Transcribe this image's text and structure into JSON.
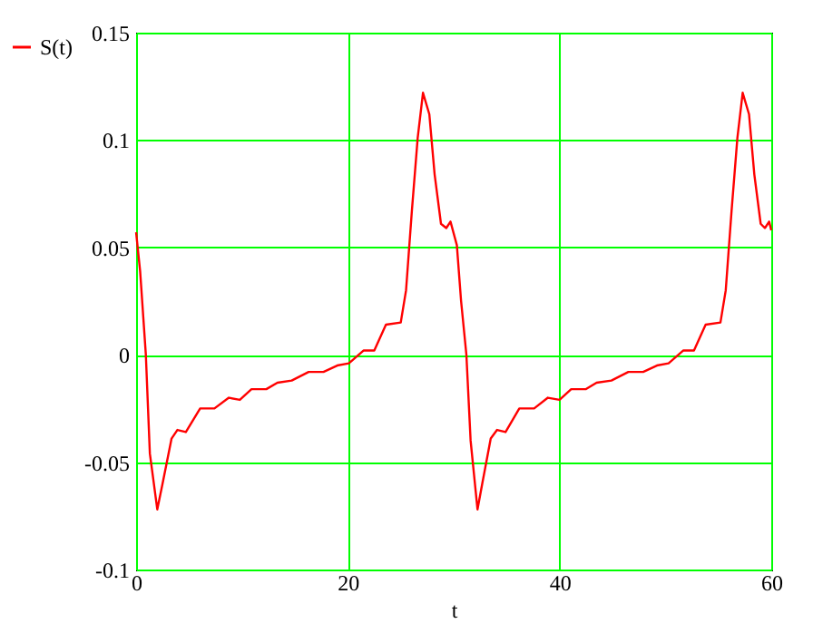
{
  "chart_data": {
    "type": "line",
    "xlabel": "t",
    "x": [
      0,
      0.38,
      0.92,
      1.3,
      2.0,
      2.5,
      3.35,
      3.9,
      4.7,
      6.05,
      7.4,
      8.76,
      9.8,
      10.9,
      12.3,
      13.35,
      14.7,
      16.3,
      17.7,
      19.0,
      20.1,
      21.5,
      22.5,
      23.6,
      25.0,
      25.5,
      26.05,
      26.6,
      27.1,
      27.7,
      28.2,
      28.8,
      29.3,
      29.7,
      30.3,
      30.7,
      31.2,
      31.6,
      32.25,
      32.7,
      33.5,
      34.1,
      34.9,
      36.2,
      37.6,
      38.9,
      40.0,
      41.1,
      42.5,
      43.5,
      44.9,
      46.5,
      47.9,
      49.2,
      50.3,
      51.7,
      52.7,
      53.8,
      55.2,
      55.7,
      56.25,
      56.8,
      57.3,
      57.9,
      58.4,
      59.0,
      59.4,
      59.8,
      60
    ],
    "series": [
      {
        "name": "S(t)",
        "color": "#ff0000",
        "values": [
          0.057,
          0.039,
          0,
          -0.046,
          -0.072,
          -0.06,
          -0.039,
          -0.035,
          -0.036,
          -0.025,
          -0.025,
          -0.02,
          -0.021,
          -0.016,
          -0.016,
          -0.013,
          -0.012,
          -0.008,
          -0.008,
          -0.005,
          -0.004,
          0.002,
          0.002,
          0.014,
          0.015,
          0.03,
          0.067,
          0.101,
          0.122,
          0.112,
          0.084,
          0.061,
          0.059,
          0.062,
          0.051,
          0.025,
          0,
          -0.04,
          -0.072,
          -0.06,
          -0.039,
          -0.035,
          -0.036,
          -0.025,
          -0.025,
          -0.02,
          -0.021,
          -0.016,
          -0.016,
          -0.013,
          -0.012,
          -0.008,
          -0.008,
          -0.005,
          -0.004,
          0.002,
          0.002,
          0.014,
          0.015,
          0.03,
          0.067,
          0.101,
          0.122,
          0.112,
          0.084,
          0.061,
          0.059,
          0.062,
          0.058
        ]
      }
    ],
    "xlim": [
      0,
      60
    ],
    "xticks": [
      0,
      20,
      40,
      60
    ],
    "ylim": [
      -0.1,
      0.15
    ],
    "yticks": [
      -0.1,
      -0.05,
      0,
      0.05,
      0.1,
      0.15
    ],
    "grid": true,
    "legend": "left",
    "marker": "none",
    "line_style": "solid"
  }
}
